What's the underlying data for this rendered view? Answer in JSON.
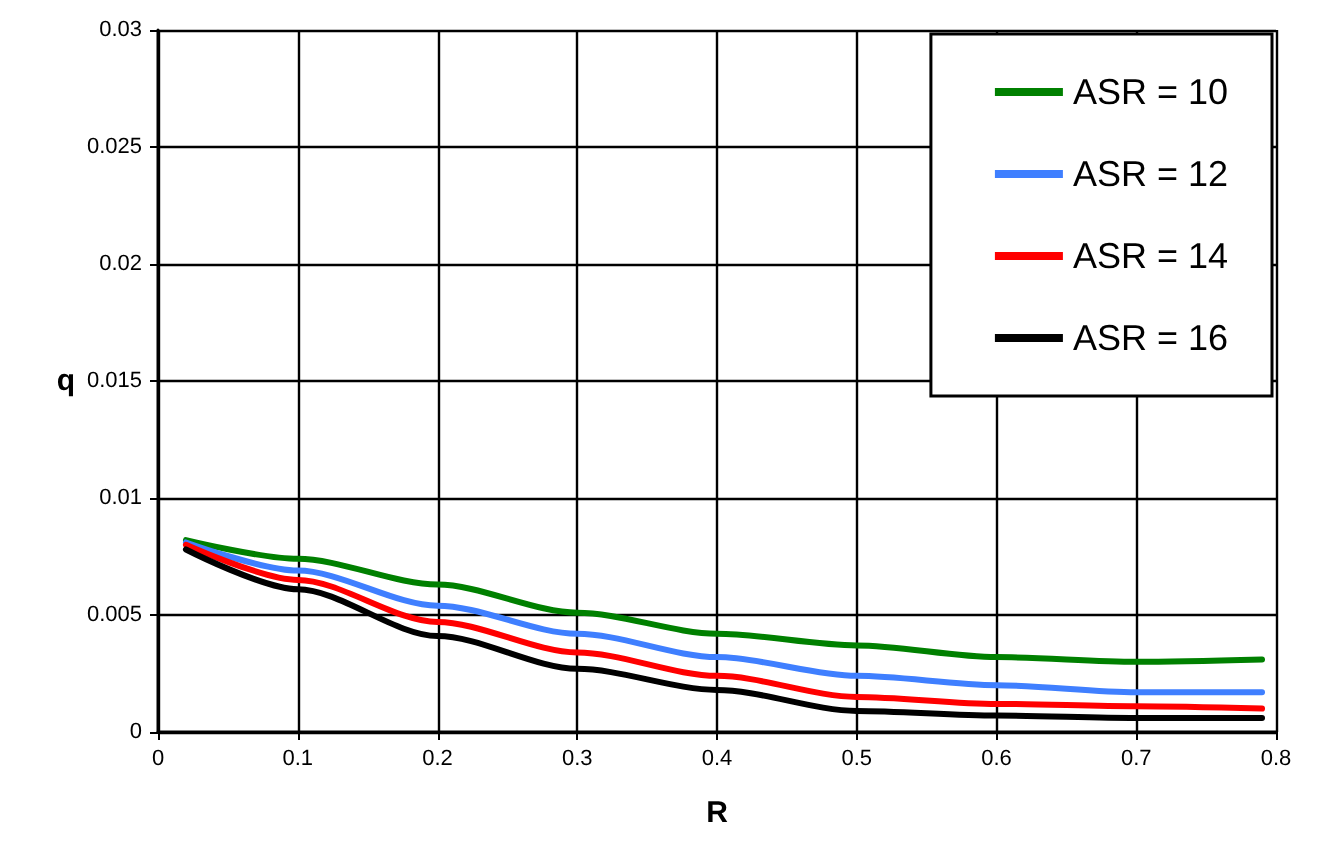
{
  "chart_data": {
    "type": "line",
    "xlabel": "R",
    "ylabel": "q",
    "x": [
      0.02,
      0.1,
      0.2,
      0.3,
      0.4,
      0.5,
      0.6,
      0.7,
      0.79
    ],
    "series": [
      {
        "name": "ASR = 10",
        "color": "#008000",
        "values": [
          0.0082,
          0.0074,
          0.0063,
          0.0051,
          0.0042,
          0.0037,
          0.0032,
          0.003,
          0.0031
        ]
      },
      {
        "name": "ASR = 12",
        "color": "#3f7fff",
        "values": [
          0.0081,
          0.0069,
          0.0054,
          0.0042,
          0.0032,
          0.0024,
          0.002,
          0.0017,
          0.0017
        ]
      },
      {
        "name": "ASR = 14",
        "color": "#ff0000",
        "values": [
          0.008,
          0.0065,
          0.0047,
          0.0034,
          0.0024,
          0.0015,
          0.0012,
          0.0011,
          0.001
        ]
      },
      {
        "name": "ASR = 16",
        "color": "#000000",
        "values": [
          0.0078,
          0.0061,
          0.0041,
          0.0027,
          0.0018,
          0.0009,
          0.0007,
          0.0006,
          0.0006
        ]
      }
    ],
    "xlim": [
      0,
      0.8
    ],
    "xticks": [
      0,
      0.1,
      0.2,
      0.3,
      0.4,
      0.5,
      0.6,
      0.7,
      0.8
    ],
    "ylim": [
      0,
      0.03
    ],
    "yticks": [
      0,
      0.005,
      0.01,
      0.015,
      0.02,
      0.025,
      0.03
    ],
    "grid": true,
    "legend": "top right",
    "marker": "none",
    "line_style": "solid"
  }
}
